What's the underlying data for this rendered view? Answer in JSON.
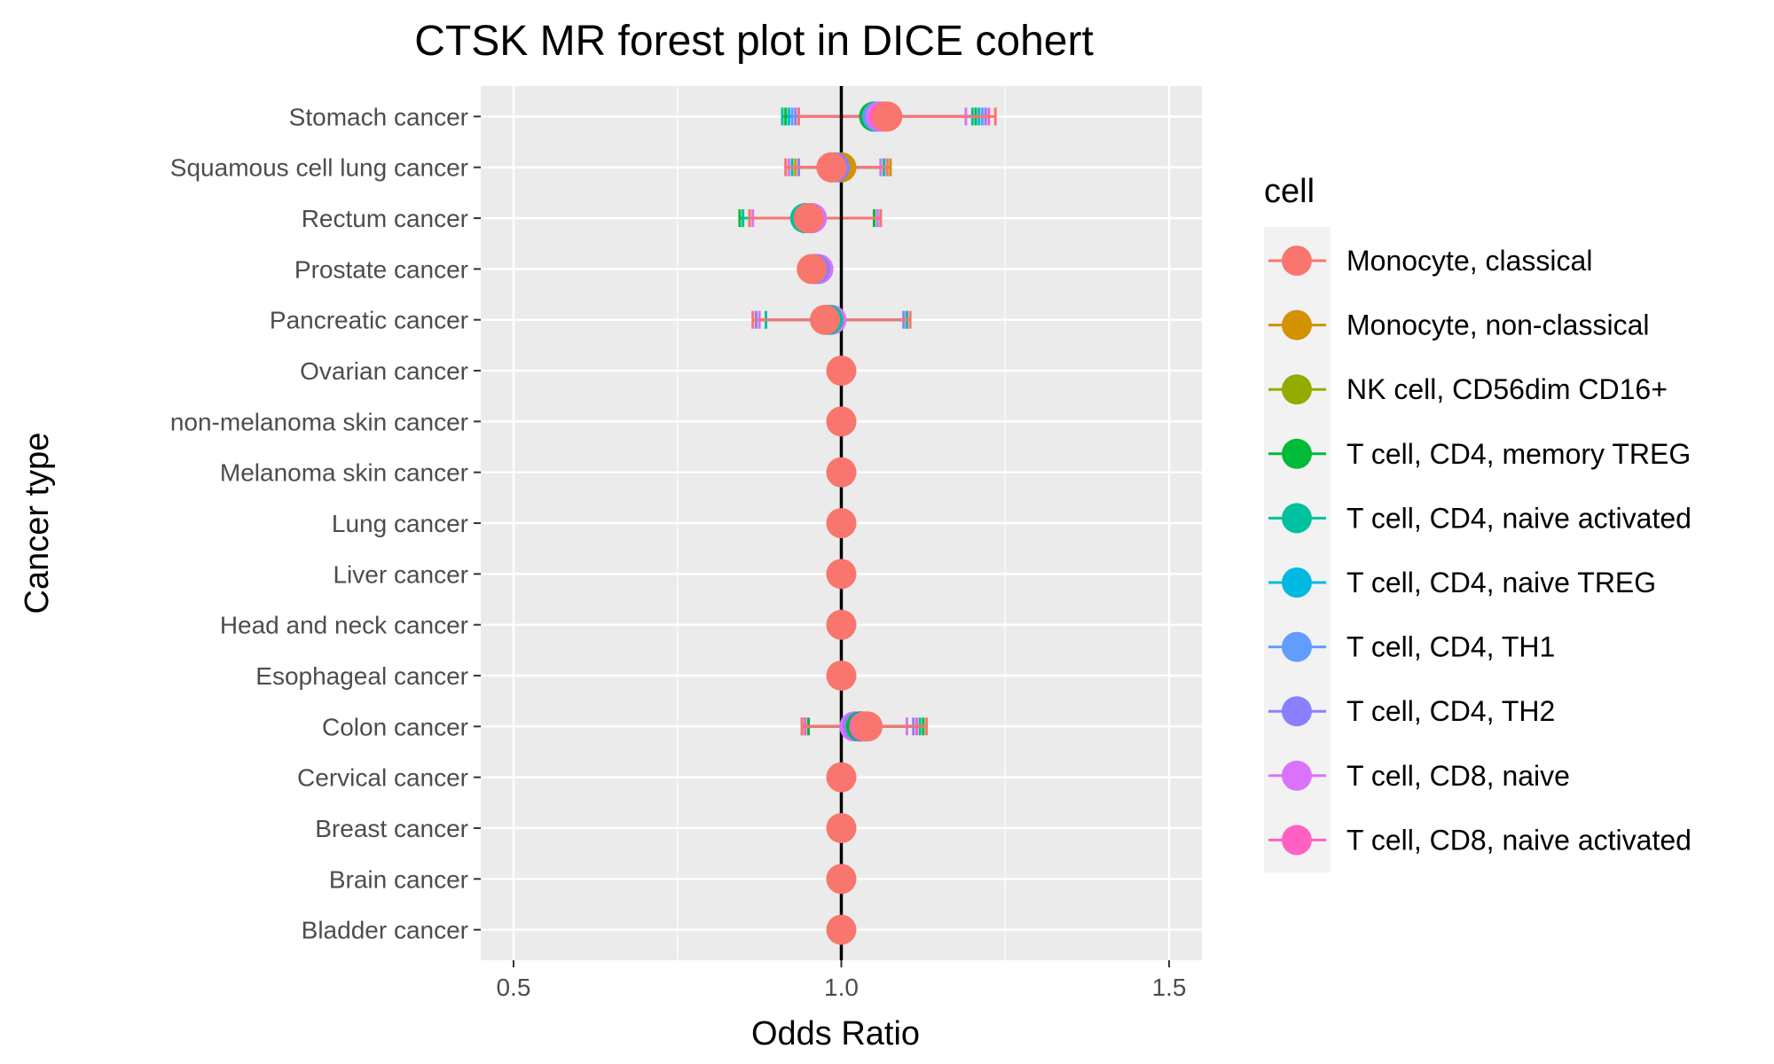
{
  "chart_data": {
    "type": "scatter",
    "title": "CTSK MR forest plot in DICE cohert",
    "xlabel": "Odds Ratio",
    "ylabel": "Cancer type",
    "xlim": [
      0.45,
      1.55
    ],
    "x_ticks": [
      "0.5",
      "1.0",
      "1.5"
    ],
    "x_tick_values": [
      0.5,
      1.0,
      1.5
    ],
    "reference_line": 1.0,
    "grid": true,
    "legend": {
      "title": "cell",
      "placement": "right",
      "entries": [
        {
          "name": "Monocyte, classical",
          "color": "#F8766D"
        },
        {
          "name": "Monocyte, non-classical",
          "color": "#D39200"
        },
        {
          "name": "NK cell, CD56dim CD16+",
          "color": "#93AA00"
        },
        {
          "name": "T cell, CD4, memory TREG",
          "color": "#00BA38"
        },
        {
          "name": "T cell, CD4, naive activated",
          "color": "#00C19F"
        },
        {
          "name": "T cell, CD4, naive TREG",
          "color": "#00B9E3"
        },
        {
          "name": "T cell, CD4, TH1",
          "color": "#619CFF"
        },
        {
          "name": "T cell, CD4, TH2",
          "color": "#8B7FFF"
        },
        {
          "name": "T cell, CD8, naive",
          "color": "#DB72FB"
        },
        {
          "name": "T cell, CD8, naive activated",
          "color": "#FF61C3"
        }
      ]
    },
    "categories": [
      "Stomach cancer",
      "Squamous cell lung cancer",
      "Rectum cancer",
      "Prostate cancer",
      "Pancreatic cancer",
      "Ovarian cancer",
      "non-melanoma skin cancer",
      "Melanoma skin cancer",
      "Lung cancer",
      "Liver cancer",
      "Head and neck cancer",
      "Esophageal cancer",
      "Colon cancer",
      "Cervical cancer",
      "Breast cancer",
      "Brain cancer",
      "Bladder cancer"
    ],
    "points": [
      {
        "cancer": "Stomach cancer",
        "cell": "T cell, CD4, naive activated",
        "or": 1.05,
        "lo": 0.91,
        "hi": 1.2
      },
      {
        "cancer": "Stomach cancer",
        "cell": "T cell, CD4, memory TREG",
        "or": 1.05,
        "lo": 0.915,
        "hi": 1.205
      },
      {
        "cancer": "Stomach cancer",
        "cell": "T cell, CD4, naive TREG",
        "or": 1.055,
        "lo": 0.92,
        "hi": 1.21
      },
      {
        "cancer": "Stomach cancer",
        "cell": "T cell, CD4, TH1",
        "or": 1.055,
        "lo": 0.925,
        "hi": 1.215
      },
      {
        "cancer": "Stomach cancer",
        "cell": "T cell, CD4, TH2",
        "or": 1.06,
        "lo": 0.93,
        "hi": 1.22
      },
      {
        "cancer": "Stomach cancer",
        "cell": "T cell, CD8, naive",
        "or": 1.06,
        "lo": 0.935,
        "hi": 1.19
      },
      {
        "cancer": "Stomach cancer",
        "cell": "T cell, CD8, naive activated",
        "or": 1.065,
        "lo": 0.935,
        "hi": 1.225
      },
      {
        "cancer": "Stomach cancer",
        "cell": "Monocyte, classical",
        "or": 1.07,
        "lo": 0.935,
        "hi": 1.235
      },
      {
        "cancer": "Squamous cell lung cancer",
        "cell": "Monocyte, non-classical",
        "or": 1.0,
        "lo": 0.93,
        "hi": 1.075
      },
      {
        "cancer": "Squamous cell lung cancer",
        "cell": "T cell, CD4, naive activated",
        "or": 0.99,
        "lo": 0.925,
        "hi": 1.065
      },
      {
        "cancer": "Squamous cell lung cancer",
        "cell": "T cell, CD4, TH2",
        "or": 0.99,
        "lo": 0.935,
        "hi": 1.07
      },
      {
        "cancer": "Squamous cell lung cancer",
        "cell": "T cell, CD8, naive",
        "or": 0.985,
        "lo": 0.92,
        "hi": 1.06
      },
      {
        "cancer": "Squamous cell lung cancer",
        "cell": "Monocyte, classical",
        "or": 0.985,
        "lo": 0.915,
        "hi": 1.07
      },
      {
        "cancer": "Rectum cancer",
        "cell": "T cell, CD4, memory TREG",
        "or": 0.945,
        "lo": 0.845,
        "hi": 1.05
      },
      {
        "cancer": "Rectum cancer",
        "cell": "T cell, CD4, naive activated",
        "or": 0.945,
        "lo": 0.85,
        "hi": 1.055
      },
      {
        "cancer": "Rectum cancer",
        "cell": "T cell, CD4, TH2",
        "or": 0.955,
        "lo": 0.86,
        "hi": 1.06
      },
      {
        "cancer": "Rectum cancer",
        "cell": "T cell, CD8, naive",
        "or": 0.955,
        "lo": 0.865,
        "hi": 1.055
      },
      {
        "cancer": "Rectum cancer",
        "cell": "Monocyte, classical",
        "or": 0.95,
        "lo": 0.86,
        "hi": 1.06
      },
      {
        "cancer": "Prostate cancer",
        "cell": "T cell, CD8, naive",
        "or": 0.965,
        "lo": 0.955,
        "hi": 0.975
      },
      {
        "cancer": "Prostate cancer",
        "cell": "T cell, CD4, TH2",
        "or": 0.96,
        "lo": 0.95,
        "hi": 0.97
      },
      {
        "cancer": "Prostate cancer",
        "cell": "Monocyte, classical",
        "or": 0.955,
        "lo": 0.945,
        "hi": 0.965
      },
      {
        "cancer": "Pancreatic cancer",
        "cell": "T cell, CD8, naive",
        "or": 0.985,
        "lo": 0.875,
        "hi": 1.1
      },
      {
        "cancer": "Pancreatic cancer",
        "cell": "T cell, CD4, TH2",
        "or": 0.98,
        "lo": 0.87,
        "hi": 1.095
      },
      {
        "cancer": "Pancreatic cancer",
        "cell": "T cell, CD4, naive activated",
        "or": 0.98,
        "lo": 0.885,
        "hi": 1.1
      },
      {
        "cancer": "Pancreatic cancer",
        "cell": "Monocyte, classical",
        "or": 0.975,
        "lo": 0.865,
        "hi": 1.105
      },
      {
        "cancer": "Ovarian cancer",
        "cell": "Monocyte, classical",
        "or": 1.0,
        "lo": 1.0,
        "hi": 1.0
      },
      {
        "cancer": "non-melanoma skin cancer",
        "cell": "Monocyte, classical",
        "or": 1.0,
        "lo": 1.0,
        "hi": 1.0
      },
      {
        "cancer": "Melanoma skin cancer",
        "cell": "Monocyte, classical",
        "or": 1.0,
        "lo": 1.0,
        "hi": 1.0
      },
      {
        "cancer": "Lung cancer",
        "cell": "Monocyte, classical",
        "or": 1.0,
        "lo": 1.0,
        "hi": 1.0
      },
      {
        "cancer": "Liver cancer",
        "cell": "Monocyte, classical",
        "or": 1.0,
        "lo": 1.0,
        "hi": 1.0
      },
      {
        "cancer": "Head and neck cancer",
        "cell": "Monocyte, classical",
        "or": 1.0,
        "lo": 1.0,
        "hi": 1.0
      },
      {
        "cancer": "Esophageal cancer",
        "cell": "Monocyte, classical",
        "or": 1.0,
        "lo": 1.0,
        "hi": 1.0
      },
      {
        "cancer": "Colon cancer",
        "cell": "T cell, CD8, naive",
        "or": 1.02,
        "lo": 0.945,
        "hi": 1.1
      },
      {
        "cancer": "Colon cancer",
        "cell": "T cell, CD4, TH2",
        "or": 1.025,
        "lo": 0.94,
        "hi": 1.11
      },
      {
        "cancer": "Colon cancer",
        "cell": "T cell, CD4, naive activated",
        "or": 1.03,
        "lo": 0.945,
        "hi": 1.12
      },
      {
        "cancer": "Colon cancer",
        "cell": "T cell, CD4, memory TREG",
        "or": 1.03,
        "lo": 0.95,
        "hi": 1.125
      },
      {
        "cancer": "Colon cancer",
        "cell": "T cell, CD8, naive activated",
        "or": 1.035,
        "lo": 0.945,
        "hi": 1.115
      },
      {
        "cancer": "Colon cancer",
        "cell": "Monocyte, classical",
        "or": 1.04,
        "lo": 0.94,
        "hi": 1.13
      },
      {
        "cancer": "Cervical cancer",
        "cell": "Monocyte, classical",
        "or": 1.0,
        "lo": 1.0,
        "hi": 1.0
      },
      {
        "cancer": "Breast cancer",
        "cell": "Monocyte, classical",
        "or": 1.0,
        "lo": 1.0,
        "hi": 1.0
      },
      {
        "cancer": "Brain cancer",
        "cell": "Monocyte, classical",
        "or": 1.0,
        "lo": 1.0,
        "hi": 1.0
      },
      {
        "cancer": "Bladder cancer",
        "cell": "Monocyte, classical",
        "or": 1.0,
        "lo": 1.0,
        "hi": 1.0
      }
    ]
  }
}
